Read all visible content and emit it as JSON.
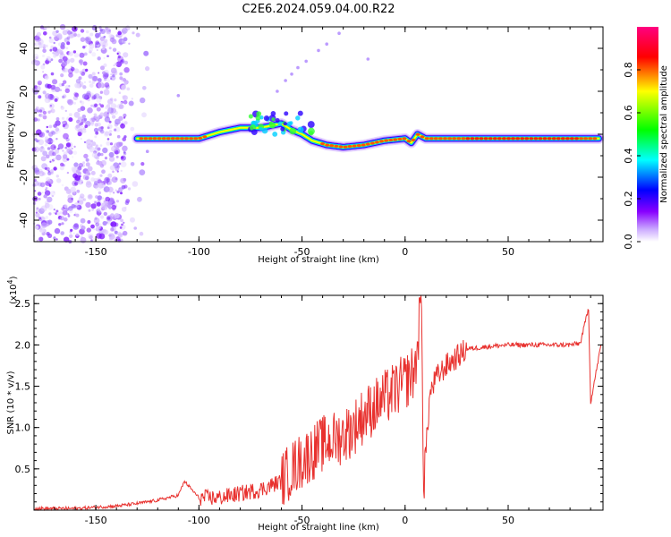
{
  "title": "C2E6.2024.059.04.00.R22",
  "colors": {
    "snr_line": "#e8312e",
    "background": "#ffffff",
    "axes": "#000000"
  },
  "chart_data": [
    {
      "type": "heatmap",
      "xlabel": "Height of straight line (km)",
      "ylabel": "Frequency (Hz)",
      "xlim": [
        -180,
        96
      ],
      "ylim": [
        -50,
        50
      ],
      "xticks": [
        "-150",
        "-100",
        "-50",
        "0",
        "50"
      ],
      "yticks": [
        "-40",
        "-20",
        "0",
        "20",
        "40"
      ],
      "colorbar": {
        "label": "Normalized spectral amplitude",
        "range": [
          0,
          1
        ],
        "ticks": [
          "0.0",
          "0.2",
          "0.4",
          "0.6",
          "0.8"
        ],
        "colormap": [
          "#ffffff",
          "#8800ff",
          "#0000ff",
          "#00ffff",
          "#00ff00",
          "#ffff00",
          "#ff0000",
          "#ff0088"
        ]
      },
      "ridge_frequency": [
        {
          "x": -130,
          "y": -2
        },
        {
          "x": -120,
          "y": -2
        },
        {
          "x": -110,
          "y": -2
        },
        {
          "x": -100,
          "y": -2
        },
        {
          "x": -90,
          "y": 1
        },
        {
          "x": -80,
          "y": 3
        },
        {
          "x": -70,
          "y": 3
        },
        {
          "x": -60,
          "y": 5
        },
        {
          "x": -55,
          "y": 2
        },
        {
          "x": -50,
          "y": 0
        },
        {
          "x": -45,
          "y": -3
        },
        {
          "x": -38,
          "y": -5
        },
        {
          "x": -30,
          "y": -6
        },
        {
          "x": -20,
          "y": -5
        },
        {
          "x": -10,
          "y": -3
        },
        {
          "x": 0,
          "y": -2
        },
        {
          "x": 3,
          "y": -4
        },
        {
          "x": 6,
          "y": 0
        },
        {
          "x": 10,
          "y": -2
        },
        {
          "x": 20,
          "y": -2
        },
        {
          "x": 40,
          "y": -2
        },
        {
          "x": 60,
          "y": -2
        },
        {
          "x": 80,
          "y": -2
        },
        {
          "x": 94,
          "y": -2
        }
      ]
    },
    {
      "type": "line",
      "xlabel": "Height of straight line (km)",
      "ylabel": "SNR (10 * v/v)",
      "multiplier": "(x10",
      "multiplier_exp": "4",
      "multiplier_close": ")",
      "xlim": [
        -180,
        96
      ],
      "ylim": [
        0,
        2.6
      ],
      "xticks": [
        "-150",
        "-100",
        "-50",
        "0",
        "50"
      ],
      "yticks": [
        "0.5",
        "1.0",
        "1.5",
        "2.0",
        "2.5"
      ],
      "series": [
        {
          "x": [
            -180,
            -160,
            -140,
            -130,
            -120,
            -110,
            -107,
            -100,
            -90,
            -80,
            -70,
            -60,
            -55,
            -50,
            -45,
            -40,
            -35,
            -30,
            -25,
            -20,
            -15,
            -10,
            -5,
            0,
            5,
            8,
            9,
            12,
            15,
            20,
            25,
            30,
            40,
            50,
            60,
            70,
            80,
            85,
            89,
            90,
            95
          ],
          "y": [
            0.02,
            0.02,
            0.05,
            0.08,
            0.12,
            0.18,
            0.35,
            0.15,
            0.15,
            0.2,
            0.25,
            0.35,
            0.5,
            0.6,
            0.7,
            0.8,
            0.85,
            0.9,
            1.0,
            1.15,
            1.25,
            1.35,
            1.45,
            1.55,
            1.7,
            2.6,
            0.3,
            1.4,
            1.6,
            1.75,
            1.85,
            1.95,
            1.98,
            2.0,
            2.0,
            2.0,
            2.0,
            2.02,
            2.45,
            1.3,
            2.0
          ]
        }
      ]
    }
  ]
}
